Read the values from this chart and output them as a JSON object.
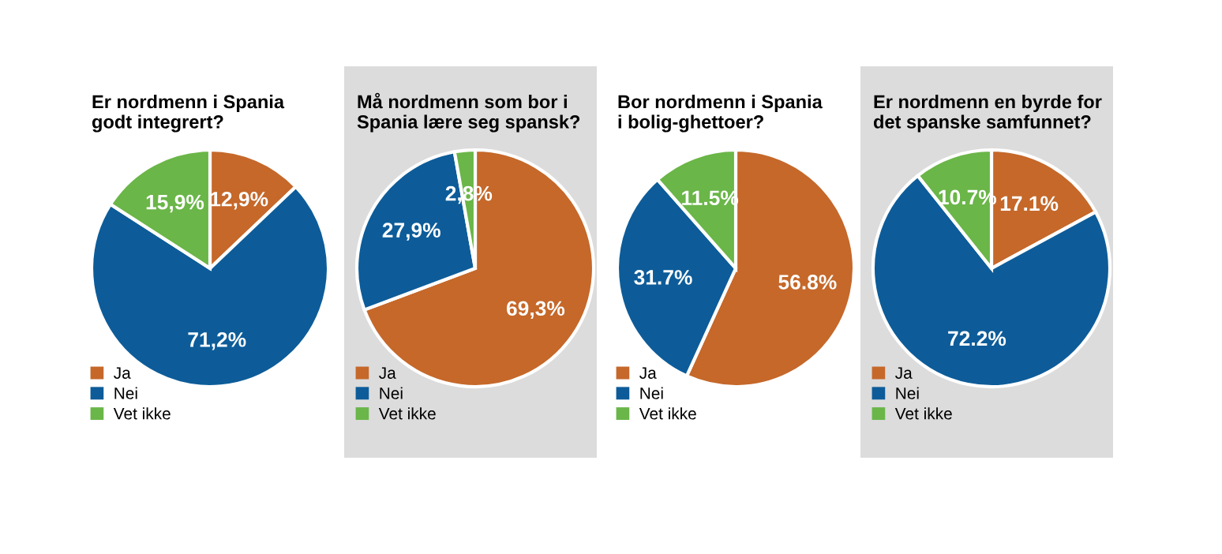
{
  "chart_data": [
    {
      "type": "pie",
      "title": "Er nordmenn i Spania\ngodt integrert?",
      "categories": [
        "Ja",
        "Nei",
        "Vet ikke"
      ],
      "values": [
        12.9,
        71.2,
        15.9
      ],
      "colors": [
        "#c5682a",
        "#0d5c99",
        "#6ab648"
      ],
      "value_labels": [
        "12,9%",
        "71,2%",
        "15,9%"
      ],
      "legend": "bottom left"
    },
    {
      "type": "pie",
      "title": "Må nordmenn som bor i\nSpania lære seg spansk?",
      "categories": [
        "Ja",
        "Nei",
        "Vet ikke"
      ],
      "values": [
        69.3,
        27.9,
        2.8
      ],
      "colors": [
        "#c5682a",
        "#0d5c99",
        "#6ab648"
      ],
      "value_labels": [
        "69,3%",
        "27,9%",
        "2,8%"
      ],
      "legend": "bottom left"
    },
    {
      "type": "pie",
      "title": "Bor nordmenn i Spania\ni bolig-ghettoer?",
      "categories": [
        "Ja",
        "Nei",
        "Vet ikke"
      ],
      "values": [
        56.8,
        31.7,
        11.5
      ],
      "colors": [
        "#c5682a",
        "#0d5c99",
        "#6ab648"
      ],
      "value_labels": [
        "56.8%",
        "31.7%",
        "11.5%"
      ],
      "legend": "bottom left"
    },
    {
      "type": "pie",
      "title": "Er nordmenn en byrde for\ndet spanske samfunnet?",
      "categories": [
        "Ja",
        "Nei",
        "Vet ikke"
      ],
      "values": [
        17.1,
        72.2,
        10.7
      ],
      "colors": [
        "#c5682a",
        "#0d5c99",
        "#6ab648"
      ],
      "value_labels": [
        "17.1%",
        "72.2%",
        "10.7%"
      ],
      "legend": "bottom left"
    }
  ]
}
